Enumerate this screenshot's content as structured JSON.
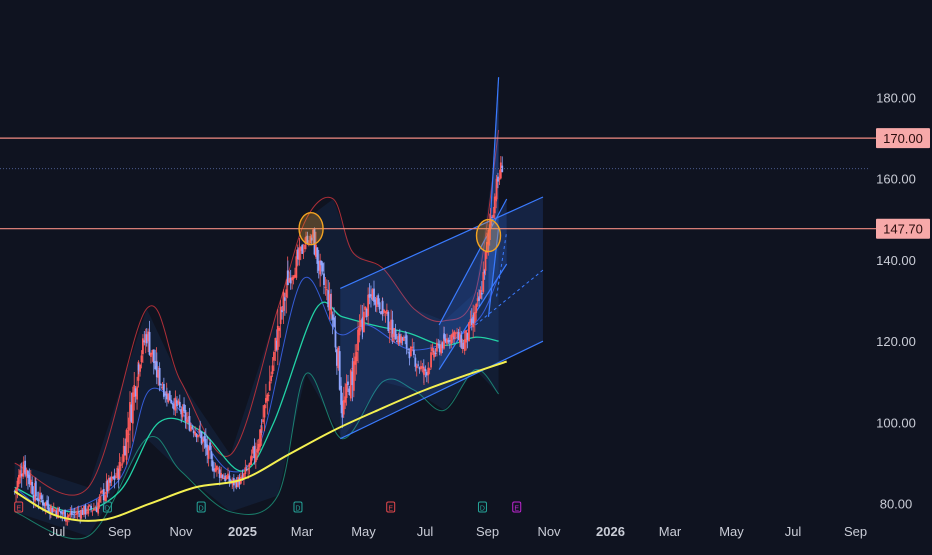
{
  "colors": {
    "background": "#0f1320",
    "up": "#ff5b5b",
    "down": "#8fa6ff",
    "level_line": "#f28b82",
    "label_bg": "#f7a9a9",
    "label_text": "#2b0d0d",
    "axis_text": "#c9ccd6",
    "ma_200": "#f4f051",
    "ma_mid": "#22d3a6",
    "ma_fast": "#3f6bff",
    "band": "#c9343c",
    "channel": "#3a7bff",
    "highlight": "#f3a321"
  },
  "chart_data": {
    "type": "candlestick",
    "title": "",
    "xlabel": "",
    "ylabel": "",
    "ylim": [
      75,
      188
    ],
    "x_ticks": [
      {
        "label": "Jul",
        "date": "2024-07-01"
      },
      {
        "label": "Sep",
        "date": "2024-09-01"
      },
      {
        "label": "Nov",
        "date": "2024-11-01"
      },
      {
        "label": "2025",
        "date": "2025-01-01",
        "bold": true
      },
      {
        "label": "Mar",
        "date": "2025-03-01"
      },
      {
        "label": "May",
        "date": "2025-05-01"
      },
      {
        "label": "Jul",
        "date": "2025-07-01"
      },
      {
        "label": "Sep",
        "date": "2025-09-01"
      },
      {
        "label": "Nov",
        "date": "2025-11-01"
      },
      {
        "label": "2026",
        "date": "2026-01-01",
        "bold": true
      },
      {
        "label": "Mar",
        "date": "2026-03-01"
      },
      {
        "label": "May",
        "date": "2026-05-01"
      },
      {
        "label": "Jul",
        "date": "2026-07-01"
      },
      {
        "label": "Sep",
        "date": "2026-09-01"
      }
    ],
    "y_ticks": [
      "80.00",
      "100.00",
      "120.00",
      "140.00",
      "160.00",
      "180.00"
    ],
    "levels": [
      {
        "label": "170.00",
        "value": 170.0
      },
      {
        "label": "147.70",
        "value": 147.7
      }
    ],
    "dotted_level": 162.5,
    "price_path": [
      [
        "2024-05-20",
        83
      ],
      [
        "2024-05-29",
        90
      ],
      [
        "2024-06-10",
        82
      ],
      [
        "2024-06-25",
        79
      ],
      [
        "2024-07-10",
        77
      ],
      [
        "2024-07-25",
        78
      ],
      [
        "2024-08-08",
        79
      ],
      [
        "2024-08-20",
        84
      ],
      [
        "2024-09-01",
        88
      ],
      [
        "2024-09-10",
        100
      ],
      [
        "2024-09-20",
        115
      ],
      [
        "2024-09-28",
        122
      ],
      [
        "2024-10-08",
        112
      ],
      [
        "2024-10-18",
        107
      ],
      [
        "2024-10-28",
        104
      ],
      [
        "2024-11-08",
        100
      ],
      [
        "2024-11-20",
        97
      ],
      [
        "2024-12-01",
        90
      ],
      [
        "2024-12-12",
        87
      ],
      [
        "2024-12-22",
        85
      ],
      [
        "2025-01-01",
        86
      ],
      [
        "2025-01-10",
        90
      ],
      [
        "2025-01-20",
        99
      ],
      [
        "2025-01-28",
        110
      ],
      [
        "2025-02-05",
        122
      ],
      [
        "2025-02-15",
        135
      ],
      [
        "2025-02-25",
        140
      ],
      [
        "2025-03-05",
        145
      ],
      [
        "2025-03-12",
        145
      ],
      [
        "2025-03-20",
        136
      ],
      [
        "2025-03-30",
        128
      ],
      [
        "2025-04-06",
        115
      ],
      [
        "2025-04-10",
        103
      ],
      [
        "2025-04-20",
        112
      ],
      [
        "2025-04-30",
        125
      ],
      [
        "2025-05-10",
        132
      ],
      [
        "2025-05-20",
        128
      ],
      [
        "2025-05-30",
        122
      ],
      [
        "2025-06-10",
        120
      ],
      [
        "2025-06-20",
        116
      ],
      [
        "2025-06-30",
        112
      ],
      [
        "2025-07-10",
        117
      ],
      [
        "2025-07-20",
        120
      ],
      [
        "2025-07-30",
        122
      ],
      [
        "2025-08-08",
        119
      ],
      [
        "2025-08-18",
        125
      ],
      [
        "2025-08-25",
        131
      ],
      [
        "2025-08-30",
        140
      ],
      [
        "2025-09-04",
        150
      ],
      [
        "2025-09-10",
        158
      ],
      [
        "2025-09-16",
        164
      ]
    ],
    "ma_200": [
      [
        "2024-05-20",
        83
      ],
      [
        "2024-07-01",
        77
      ],
      [
        "2024-08-15",
        76
      ],
      [
        "2024-10-01",
        80
      ],
      [
        "2024-11-15",
        84
      ],
      [
        "2025-01-01",
        86
      ],
      [
        "2025-02-15",
        92
      ],
      [
        "2025-04-01",
        98
      ],
      [
        "2025-05-15",
        103
      ],
      [
        "2025-07-01",
        108
      ],
      [
        "2025-08-15",
        112
      ],
      [
        "2025-09-20",
        115
      ]
    ],
    "ma_mid": [
      [
        "2024-05-20",
        84
      ],
      [
        "2024-07-15",
        78
      ],
      [
        "2024-09-01",
        83
      ],
      [
        "2024-10-10",
        100
      ],
      [
        "2024-11-20",
        98
      ],
      [
        "2025-01-01",
        88
      ],
      [
        "2025-02-01",
        100
      ],
      [
        "2025-03-15",
        128
      ],
      [
        "2025-04-10",
        126
      ],
      [
        "2025-05-10",
        124
      ],
      [
        "2025-06-15",
        122
      ],
      [
        "2025-07-20",
        119
      ],
      [
        "2025-08-20",
        121
      ],
      [
        "2025-09-12",
        120
      ]
    ],
    "ma_fast": [
      [
        "2024-05-20",
        84
      ],
      [
        "2024-07-01",
        78
      ],
      [
        "2024-09-01",
        86
      ],
      [
        "2024-10-01",
        108
      ],
      [
        "2024-11-10",
        100
      ],
      [
        "2024-12-20",
        88
      ],
      [
        "2025-01-20",
        96
      ],
      [
        "2025-03-01",
        135
      ],
      [
        "2025-04-05",
        122
      ],
      [
        "2025-05-05",
        124
      ],
      [
        "2025-06-15",
        118
      ],
      [
        "2025-07-25",
        120
      ],
      [
        "2025-08-25",
        126
      ],
      [
        "2025-09-12",
        136
      ]
    ],
    "band_upper": [
      [
        "2024-05-20",
        90
      ],
      [
        "2024-08-01",
        84
      ],
      [
        "2024-09-28",
        128
      ],
      [
        "2024-11-01",
        110
      ],
      [
        "2024-12-20",
        92
      ],
      [
        "2025-02-05",
        128
      ],
      [
        "2025-03-05",
        150
      ],
      [
        "2025-04-01",
        155
      ],
      [
        "2025-04-20",
        142
      ],
      [
        "2025-05-20",
        138
      ],
      [
        "2025-06-20",
        128
      ],
      [
        "2025-07-20",
        125
      ],
      [
        "2025-08-20",
        132
      ],
      [
        "2025-09-12",
        172
      ]
    ],
    "band_lower": [
      [
        "2024-05-20",
        78
      ],
      [
        "2024-08-01",
        72
      ],
      [
        "2024-09-28",
        96
      ],
      [
        "2024-11-01",
        88
      ],
      [
        "2024-12-20",
        78
      ],
      [
        "2025-02-05",
        82
      ],
      [
        "2025-03-05",
        112
      ],
      [
        "2025-04-10",
        96
      ],
      [
        "2025-05-20",
        110
      ],
      [
        "2025-06-20",
        108
      ],
      [
        "2025-07-20",
        103
      ],
      [
        "2025-08-20",
        113
      ],
      [
        "2025-09-12",
        107
      ]
    ],
    "channel_main": {
      "upper": [
        [
          "2025-04-08",
          133
        ],
        [
          "2025-10-26",
          155.5
        ]
      ],
      "lower": [
        [
          "2025-04-08",
          96
        ],
        [
          "2025-10-26",
          120
        ]
      ],
      "mid_dashed": [
        [
          "2025-08-20",
          124
        ],
        [
          "2025-10-26",
          137.5
        ]
      ]
    },
    "channel_steep": {
      "upper": [
        [
          "2025-07-15",
          124
        ],
        [
          "2025-09-20",
          155
        ]
      ],
      "lower": [
        [
          "2025-07-15",
          113
        ],
        [
          "2025-09-20",
          139
        ]
      ],
      "mid_dashed": [
        [
          "2025-09-10",
          131
        ],
        [
          "2025-09-20",
          147
        ]
      ]
    },
    "spike_channel": {
      "upper": [
        [
          "2025-09-02",
          142
        ],
        [
          "2025-09-12",
          185
        ]
      ],
      "lower": [
        [
          "2025-09-02",
          126
        ],
        [
          "2025-09-12",
          148
        ]
      ]
    },
    "highlight_circles": [
      {
        "date": "2025-03-10",
        "value": 147.7
      },
      {
        "date": "2025-09-02",
        "value": 146
      }
    ],
    "event_markers": [
      {
        "date": "2024-05-24",
        "color": "#e5484d",
        "label": "E"
      },
      {
        "date": "2024-08-20",
        "color": "#26a69a",
        "label": "D"
      },
      {
        "date": "2024-11-21",
        "color": "#26a69a",
        "label": "D"
      },
      {
        "date": "2025-02-25",
        "color": "#26a69a",
        "label": "D"
      },
      {
        "date": "2025-05-28",
        "color": "#e5484d",
        "label": "E"
      },
      {
        "date": "2025-08-27",
        "color": "#26a69a",
        "label": "D"
      },
      {
        "date": "2025-09-30",
        "color": "#c026d3",
        "label": "E"
      }
    ]
  }
}
